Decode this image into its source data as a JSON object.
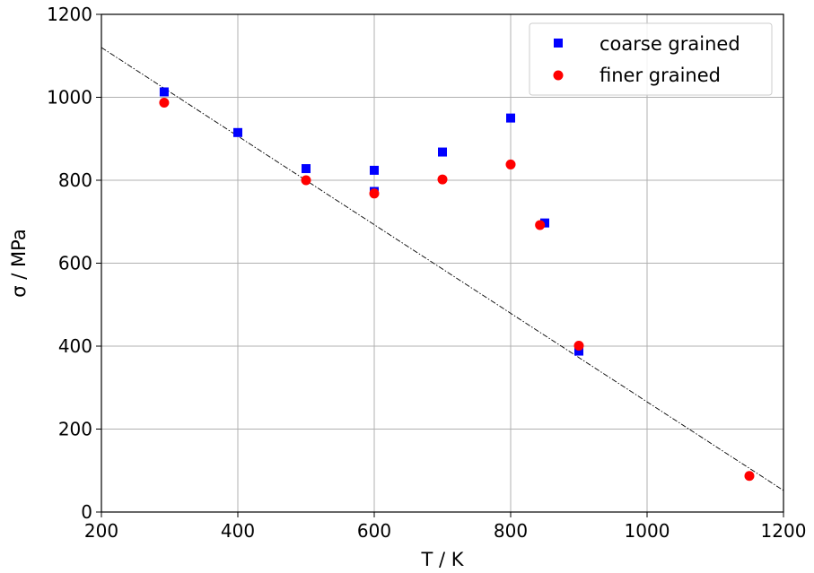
{
  "chart_data": {
    "type": "scatter",
    "title": "",
    "xlabel": "T / K",
    "ylabel": "σ / MPa",
    "xlim": [
      200,
      1200
    ],
    "ylim": [
      0,
      1200
    ],
    "xticks": [
      "200",
      "400",
      "600",
      "800",
      "1000",
      "1200"
    ],
    "yticks": [
      "0",
      "200",
      "400",
      "600",
      "800",
      "1000",
      "1200"
    ],
    "grid": true,
    "legend_position": "top-right",
    "series": [
      {
        "name": "coarse grained",
        "marker": "square",
        "color": "#0000ff",
        "points": [
          {
            "x": 292,
            "y": 1013
          },
          {
            "x": 400,
            "y": 915
          },
          {
            "x": 500,
            "y": 828
          },
          {
            "x": 600,
            "y": 824
          },
          {
            "x": 600,
            "y": 773
          },
          {
            "x": 700,
            "y": 868
          },
          {
            "x": 800,
            "y": 950
          },
          {
            "x": 850,
            "y": 697
          },
          {
            "x": 900,
            "y": 388
          }
        ]
      },
      {
        "name": "finer grained",
        "marker": "circle",
        "color": "#ff0000",
        "points": [
          {
            "x": 292,
            "y": 987
          },
          {
            "x": 500,
            "y": 800
          },
          {
            "x": 600,
            "y": 768
          },
          {
            "x": 700,
            "y": 802
          },
          {
            "x": 800,
            "y": 838
          },
          {
            "x": 843,
            "y": 692
          },
          {
            "x": 900,
            "y": 401
          },
          {
            "x": 1150,
            "y": 87
          }
        ]
      }
    ],
    "trend_line": {
      "style": "dash-dot",
      "color": "#000000",
      "points": [
        {
          "x": 200,
          "y": 1120
        },
        {
          "x": 1200,
          "y": 52
        }
      ]
    }
  }
}
